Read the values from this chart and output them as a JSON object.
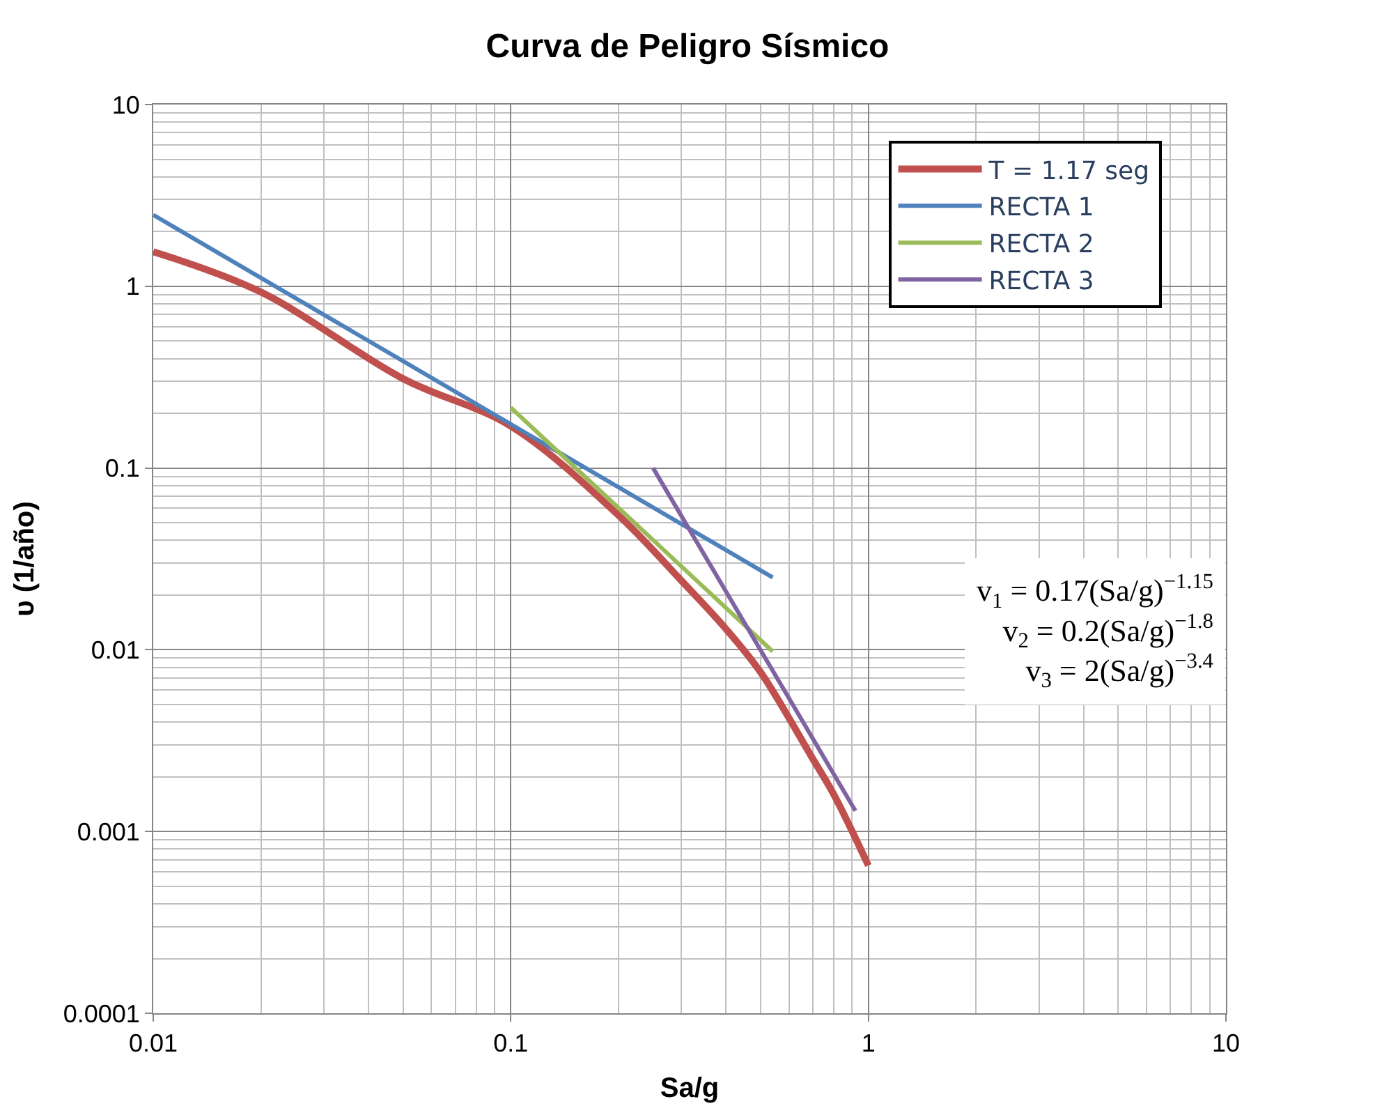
{
  "chart_data": {
    "type": "line",
    "title": "Curva de Peligro Sísmico",
    "xlabel": "Sa/g",
    "ylabel": "υ (1/año)",
    "log": "xy",
    "grid": true,
    "legend": "top right",
    "line_style": "solid",
    "marker": "none",
    "xlim": [
      0.01,
      10
    ],
    "xticks": [
      0.01,
      0.1,
      1,
      10
    ],
    "ylim": [
      0.0001,
      10
    ],
    "yticks": [
      0.0001,
      0.001,
      0.01,
      0.1,
      1,
      10
    ],
    "series": [
      {
        "name": "T = 1.17 seg",
        "color": "#c0504d",
        "x": [
          0.01,
          0.02,
          0.05,
          0.1,
          0.2,
          0.3,
          0.4,
          0.5,
          0.7,
          0.8,
          1
        ],
        "values": [
          1.55,
          0.93,
          0.31,
          0.17,
          0.055,
          0.024,
          0.013,
          0.0075,
          0.0025,
          0.0016,
          0.00065
        ]
      },
      {
        "name": "RECTA 1",
        "color": "#4f81bd",
        "x": [
          0.01,
          0.54
        ],
        "values": [
          2.47,
          0.025
        ]
      },
      {
        "name": "RECTA 2",
        "color": "#9bbb59",
        "x": [
          0.1,
          0.54
        ],
        "values": [
          0.215,
          0.0098
        ]
      },
      {
        "name": "RECTA 3",
        "color": "#8064a2",
        "x": [
          0.25,
          0.92
        ],
        "values": [
          0.1,
          0.0013
        ]
      }
    ],
    "annotations": [
      "v$_{1}$ = 0.17(Sa/g)$^{−1.15}$",
      "v$_{2}$ = 0.2(Sa/g)$^{−1.8}$",
      "v$_{3}$ = 2(Sa/g)$^{−3.4}$"
    ]
  }
}
